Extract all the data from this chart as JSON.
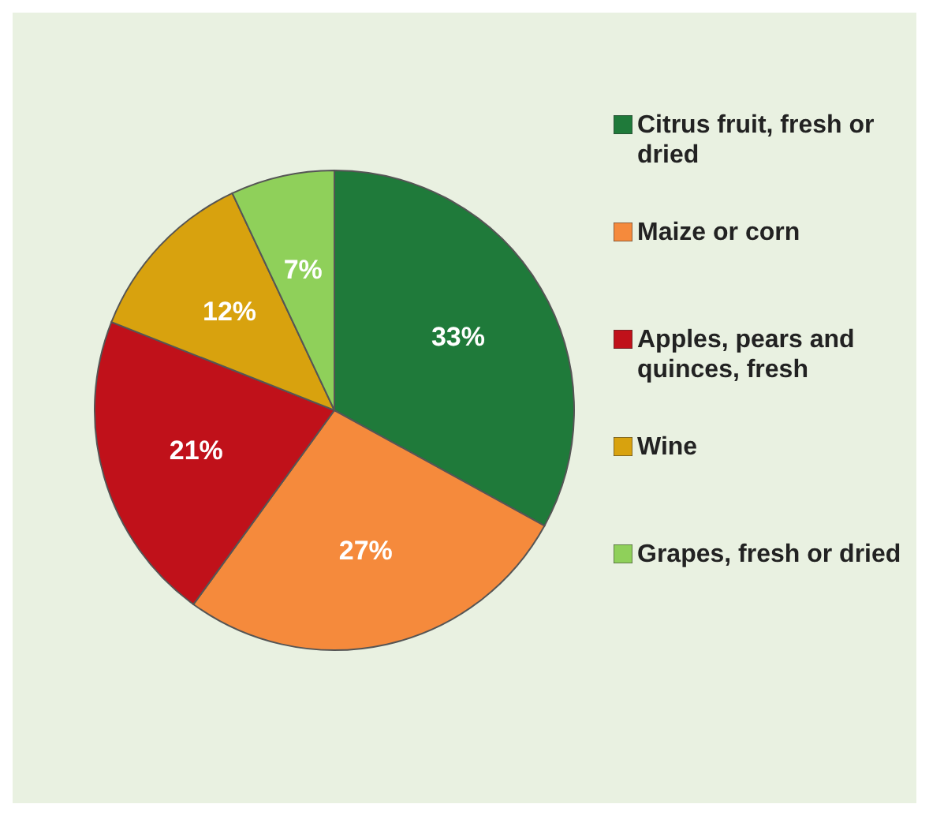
{
  "chart_data": {
    "type": "pie",
    "categories": [
      "Citrus fruit, fresh or dried",
      "Maize or corn",
      "Apples, pears and quinces, fresh",
      "Wine",
      "Grapes, fresh or dried"
    ],
    "values": [
      33,
      27,
      21,
      12,
      7
    ],
    "value_labels": [
      "33%",
      "27%",
      "21%",
      "12%",
      "7%"
    ],
    "colors": [
      "#1f7a3a",
      "#f58a3c",
      "#c0111a",
      "#d8a20e",
      "#8fd05a"
    ],
    "legend": "right"
  }
}
